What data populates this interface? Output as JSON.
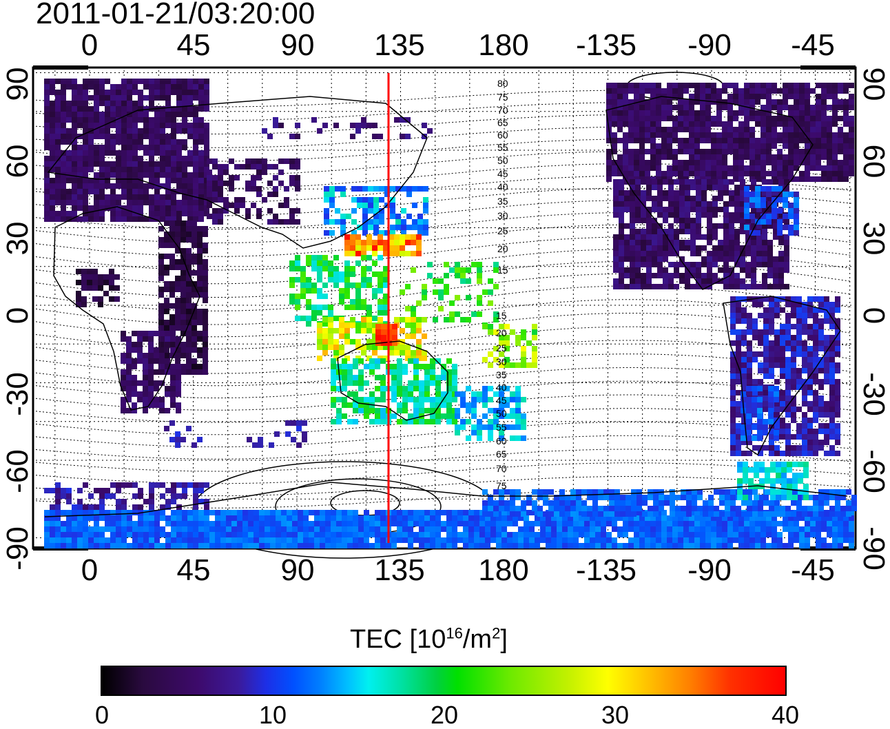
{
  "title": "2011-01-21/03:20:00",
  "x_ticks": [
    "0",
    "45",
    "90",
    "135",
    "180",
    "-135",
    "-90",
    "-45"
  ],
  "y_ticks": [
    "90",
    "60",
    "30",
    "0",
    "-30",
    "-60",
    "-90"
  ],
  "meridian_longitude": 130,
  "contour_labels": [
    "80",
    "75",
    "70",
    "65",
    "60",
    "55",
    "50",
    "45",
    "40",
    "35",
    "30",
    "25",
    "20",
    "15",
    "15",
    "20",
    "25",
    "30",
    "35",
    "40",
    "45",
    "50",
    "55",
    "60",
    "65",
    "70",
    "75"
  ],
  "colorbar": {
    "title_main": "TEC  [10",
    "title_sup1": "16",
    "title_mid": "/m",
    "title_sup2": "2",
    "title_end": "]",
    "ticks": [
      "0",
      "10",
      "20",
      "30",
      "40"
    ],
    "range": [
      0,
      40
    ]
  },
  "colors": {
    "meridian": "#ff0000",
    "background": "#ffffff"
  }
}
